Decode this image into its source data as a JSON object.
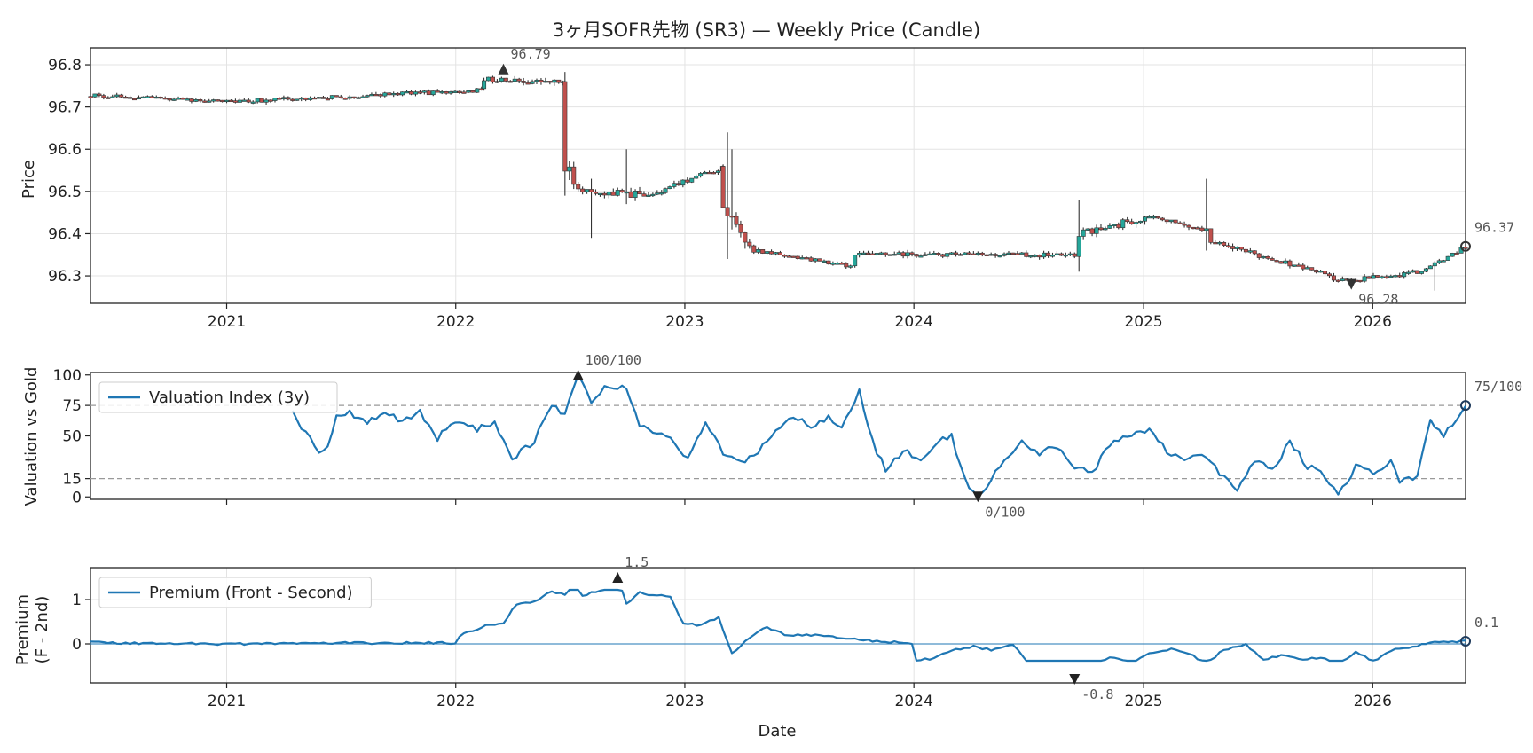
{
  "chart_data": [
    {
      "type": "candlestick",
      "title": "3ヶ月SOFR先物 (SR3) — Weekly Price (Candle)",
      "xlabel": "",
      "ylabel": "Price",
      "x_range": [
        "2020-05-29",
        "2026-05-29"
      ],
      "ylim": [
        96.235,
        96.84
      ],
      "y_ticks": [
        96.3,
        96.4,
        96.5,
        96.6,
        96.7,
        96.8
      ],
      "x_ticks": [
        "2021",
        "2022",
        "2023",
        "2024",
        "2025",
        "2026"
      ],
      "grid": true,
      "colors": {
        "up": "#26a69a",
        "down": "#c0504d",
        "wick": "#333333",
        "marker": "#333333"
      },
      "segments": [
        {
          "from": "2020-05-29",
          "to": "2021-01-01",
          "level_from": 96.728,
          "level_to": 96.712,
          "noise": 0.006
        },
        {
          "from": "2021-01-01",
          "to": "2022-02-15",
          "level_from": 96.712,
          "level_to": 96.74,
          "noise": 0.007
        },
        {
          "from": "2022-02-15",
          "to": "2022-06-24",
          "level_from": 96.765,
          "level_to": 96.758,
          "noise": 0.01
        },
        {
          "from": "2022-06-24",
          "to": "2022-07-15",
          "level_from": 96.56,
          "level_to": 96.5,
          "noise": 0.03
        },
        {
          "from": "2022-07-15",
          "to": "2022-12-01",
          "level_from": 96.5,
          "level_to": 96.49,
          "noise": 0.012
        },
        {
          "from": "2022-12-01",
          "to": "2023-03-03",
          "level_from": 96.51,
          "level_to": 96.555,
          "noise": 0.008
        },
        {
          "from": "2023-03-03",
          "to": "2023-04-21",
          "level_from": 96.45,
          "level_to": 96.37,
          "noise": 0.02
        },
        {
          "from": "2023-04-21",
          "to": "2023-09-29",
          "level_from": 96.36,
          "level_to": 96.322,
          "noise": 0.006
        },
        {
          "from": "2023-09-29",
          "to": "2024-09-20",
          "level_from": 96.35,
          "level_to": 96.35,
          "noise": 0.008
        },
        {
          "from": "2024-09-20",
          "to": "2025-01-10",
          "level_from": 96.4,
          "level_to": 96.44,
          "noise": 0.012
        },
        {
          "from": "2025-01-10",
          "to": "2025-04-18",
          "level_from": 96.44,
          "level_to": 96.405,
          "noise": 0.008
        },
        {
          "from": "2025-04-18",
          "to": "2025-10-31",
          "level_from": 96.38,
          "level_to": 96.3,
          "noise": 0.008
        },
        {
          "from": "2025-10-31",
          "to": "2026-03-20",
          "level_from": 96.285,
          "level_to": 96.31,
          "noise": 0.008
        },
        {
          "from": "2026-03-20",
          "to": "2026-05-29",
          "level_from": 96.31,
          "level_to": 96.37,
          "noise": 0.006
        }
      ],
      "spikes": [
        {
          "date": "2022-06-24",
          "high": 96.76,
          "low": 96.49
        },
        {
          "date": "2022-08-05",
          "high": 96.53,
          "low": 96.39
        },
        {
          "date": "2022-09-30",
          "high": 96.6,
          "low": 96.47
        },
        {
          "date": "2023-03-10",
          "high": 96.64,
          "low": 96.34
        },
        {
          "date": "2023-03-17",
          "high": 96.6,
          "low": 96.41
        },
        {
          "date": "2024-09-20",
          "high": 96.48,
          "low": 96.31
        },
        {
          "date": "2025-04-11",
          "high": 96.53,
          "low": 96.36
        },
        {
          "date": "2026-04-10",
          "high": 96.32,
          "low": 96.265
        }
      ],
      "last_value": 96.37,
      "annotations": [
        {
          "text": "96.79",
          "date": "2022-03-18",
          "value": 96.79,
          "kind": "max"
        },
        {
          "text": "96.28",
          "date": "2025-11-28",
          "value": 96.28,
          "kind": "min"
        },
        {
          "text": "96.37",
          "date": "2026-05-29",
          "value": 96.37,
          "kind": "last"
        }
      ]
    },
    {
      "type": "line",
      "xlabel": "",
      "ylabel": "Valuation vs Gold",
      "x_range": [
        "2020-05-29",
        "2026-05-29"
      ],
      "ylim": [
        -2,
        102
      ],
      "y_ticks": [
        0,
        15,
        50,
        75,
        100
      ],
      "hlines": [
        15,
        75
      ],
      "grid": false,
      "legend": "top-left",
      "series": [
        {
          "name": "Valuation Index (3y)",
          "color": "#1f77b4",
          "start": "2021-04-16",
          "end": "2026-05-29",
          "anchors": [
            [
              "2021-04-16",
              72
            ],
            [
              "2021-04-30",
              56
            ],
            [
              "2021-05-28",
              38
            ],
            [
              "2021-06-11",
              42
            ],
            [
              "2021-06-25",
              66
            ],
            [
              "2021-07-16",
              69
            ],
            [
              "2021-08-13",
              62
            ],
            [
              "2021-09-10",
              70
            ],
            [
              "2021-10-08",
              62
            ],
            [
              "2021-11-05",
              70
            ],
            [
              "2021-12-03",
              48
            ],
            [
              "2021-12-31",
              63
            ],
            [
              "2022-02-04",
              55
            ],
            [
              "2022-03-04",
              62
            ],
            [
              "2022-04-01",
              32
            ],
            [
              "2022-05-06",
              46
            ],
            [
              "2022-06-03",
              76
            ],
            [
              "2022-06-24",
              68
            ],
            [
              "2022-07-15",
              100
            ],
            [
              "2022-08-05",
              78
            ],
            [
              "2022-09-02",
              92
            ],
            [
              "2022-09-30",
              88
            ],
            [
              "2022-10-21",
              60
            ],
            [
              "2022-11-18",
              52
            ],
            [
              "2022-12-09",
              50
            ],
            [
              "2023-01-06",
              30
            ],
            [
              "2023-02-03",
              62
            ],
            [
              "2023-03-03",
              35
            ],
            [
              "2023-03-31",
              28
            ],
            [
              "2023-04-28",
              38
            ],
            [
              "2023-05-26",
              55
            ],
            [
              "2023-06-23",
              66
            ],
            [
              "2023-07-21",
              58
            ],
            [
              "2023-08-18",
              66
            ],
            [
              "2023-09-08",
              58
            ],
            [
              "2023-10-06",
              87
            ],
            [
              "2023-10-27",
              45
            ],
            [
              "2023-11-17",
              22
            ],
            [
              "2023-12-15",
              38
            ],
            [
              "2024-01-12",
              30
            ],
            [
              "2024-02-09",
              45
            ],
            [
              "2024-03-01",
              50
            ],
            [
              "2024-03-22",
              14
            ],
            [
              "2024-04-12",
              0
            ],
            [
              "2024-05-03",
              14
            ],
            [
              "2024-05-24",
              30
            ],
            [
              "2024-06-21",
              45
            ],
            [
              "2024-07-19",
              35
            ],
            [
              "2024-08-16",
              42
            ],
            [
              "2024-09-13",
              25
            ],
            [
              "2024-10-11",
              20
            ],
            [
              "2024-11-08",
              42
            ],
            [
              "2024-12-06",
              50
            ],
            [
              "2025-01-10",
              56
            ],
            [
              "2025-02-07",
              38
            ],
            [
              "2025-03-07",
              30
            ],
            [
              "2025-04-04",
              35
            ],
            [
              "2025-05-02",
              20
            ],
            [
              "2025-05-30",
              5
            ],
            [
              "2025-06-27",
              30
            ],
            [
              "2025-07-25",
              22
            ],
            [
              "2025-08-22",
              45
            ],
            [
              "2025-09-19",
              25
            ],
            [
              "2025-10-17",
              18
            ],
            [
              "2025-11-07",
              1
            ],
            [
              "2025-12-05",
              25
            ],
            [
              "2026-01-02",
              20
            ],
            [
              "2026-01-30",
              28
            ],
            [
              "2026-02-13",
              12
            ],
            [
              "2026-03-13",
              18
            ],
            [
              "2026-04-03",
              64
            ],
            [
              "2026-04-24",
              50
            ],
            [
              "2026-05-29",
              75
            ]
          ]
        }
      ],
      "annotations": [
        {
          "text": "100/100",
          "date": "2022-07-15",
          "value": 100,
          "kind": "max"
        },
        {
          "text": "0/100",
          "date": "2024-04-12",
          "value": 0,
          "kind": "min"
        },
        {
          "text": "75/100",
          "date": "2026-05-29",
          "value": 75,
          "kind": "last"
        }
      ]
    },
    {
      "type": "line",
      "xlabel": "Date",
      "ylabel": "Premium\n(F - 2nd)",
      "x_range": [
        "2020-05-29",
        "2026-05-29"
      ],
      "ylim": [
        -0.88,
        1.72
      ],
      "y_ticks": [
        0,
        1
      ],
      "x_ticks": [
        "2021",
        "2022",
        "2023",
        "2024",
        "2025",
        "2026"
      ],
      "hlines": [
        0
      ],
      "grid": true,
      "legend": "top-left",
      "series": [
        {
          "name": "Premium (Front - Second)",
          "color": "#1f77b4",
          "start": "2020-05-29",
          "end": "2026-05-29",
          "anchors": [
            [
              "2020-05-29",
              0.04
            ],
            [
              "2020-07-03",
              0.02
            ],
            [
              "2020-12-31",
              0.0
            ],
            [
              "2021-06-30",
              0.02
            ],
            [
              "2021-12-31",
              0.02
            ],
            [
              "2022-01-07",
              0.18
            ],
            [
              "2022-02-18",
              0.42
            ],
            [
              "2022-03-18",
              0.48
            ],
            [
              "2022-04-08",
              0.9
            ],
            [
              "2022-05-06",
              0.96
            ],
            [
              "2022-06-03",
              1.18
            ],
            [
              "2022-06-24",
              1.12
            ],
            [
              "2022-07-08",
              1.4
            ],
            [
              "2022-07-22",
              1.1
            ],
            [
              "2022-08-19",
              1.2
            ],
            [
              "2022-09-16",
              1.5
            ],
            [
              "2022-09-30",
              0.9
            ],
            [
              "2022-10-21",
              1.15
            ],
            [
              "2022-11-18",
              1.1
            ],
            [
              "2022-12-09",
              1.05
            ],
            [
              "2022-12-30",
              0.45
            ],
            [
              "2023-01-27",
              0.42
            ],
            [
              "2023-02-24",
              0.6
            ],
            [
              "2023-03-17",
              -0.22
            ],
            [
              "2023-04-14",
              0.15
            ],
            [
              "2023-05-12",
              0.38
            ],
            [
              "2023-06-09",
              0.22
            ],
            [
              "2023-07-07",
              0.18
            ],
            [
              "2023-08-04",
              0.22
            ],
            [
              "2023-09-01",
              0.12
            ],
            [
              "2023-10-06",
              0.1
            ],
            [
              "2023-11-03",
              0.05
            ],
            [
              "2023-12-29",
              0.02
            ],
            [
              "2024-01-05",
              -0.38
            ],
            [
              "2024-02-02",
              -0.32
            ],
            [
              "2024-03-01",
              -0.15
            ],
            [
              "2024-04-05",
              -0.06
            ],
            [
              "2024-05-03",
              -0.14
            ],
            [
              "2024-06-07",
              -0.02
            ],
            [
              "2024-07-05",
              -0.5
            ],
            [
              "2024-08-16",
              -0.58
            ],
            [
              "2024-09-13",
              -0.8
            ],
            [
              "2024-10-11",
              -0.45
            ],
            [
              "2024-11-08",
              -0.3
            ],
            [
              "2024-12-13",
              -0.45
            ],
            [
              "2025-01-10",
              -0.2
            ],
            [
              "2025-02-14",
              -0.12
            ],
            [
              "2025-03-14",
              -0.22
            ],
            [
              "2025-04-11",
              -0.45
            ],
            [
              "2025-05-09",
              -0.12
            ],
            [
              "2025-06-13",
              -0.02
            ],
            [
              "2025-07-11",
              -0.38
            ],
            [
              "2025-08-08",
              -0.25
            ],
            [
              "2025-09-12",
              -0.35
            ],
            [
              "2025-10-10",
              -0.3
            ],
            [
              "2025-11-07",
              -0.5
            ],
            [
              "2025-12-05",
              -0.2
            ],
            [
              "2026-01-02",
              -0.38
            ],
            [
              "2026-02-06",
              -0.1
            ],
            [
              "2026-03-13",
              -0.05
            ],
            [
              "2026-04-10",
              0.04
            ],
            [
              "2026-05-29",
              0.06
            ]
          ]
        }
      ],
      "annotations": [
        {
          "text": "1.5",
          "date": "2022-09-16",
          "value": 1.5,
          "kind": "max"
        },
        {
          "text": "-0.8",
          "date": "2024-09-13",
          "value": -0.8,
          "kind": "min"
        },
        {
          "text": "0.1",
          "date": "2026-05-29",
          "value": 0.06,
          "kind": "last"
        }
      ]
    }
  ]
}
